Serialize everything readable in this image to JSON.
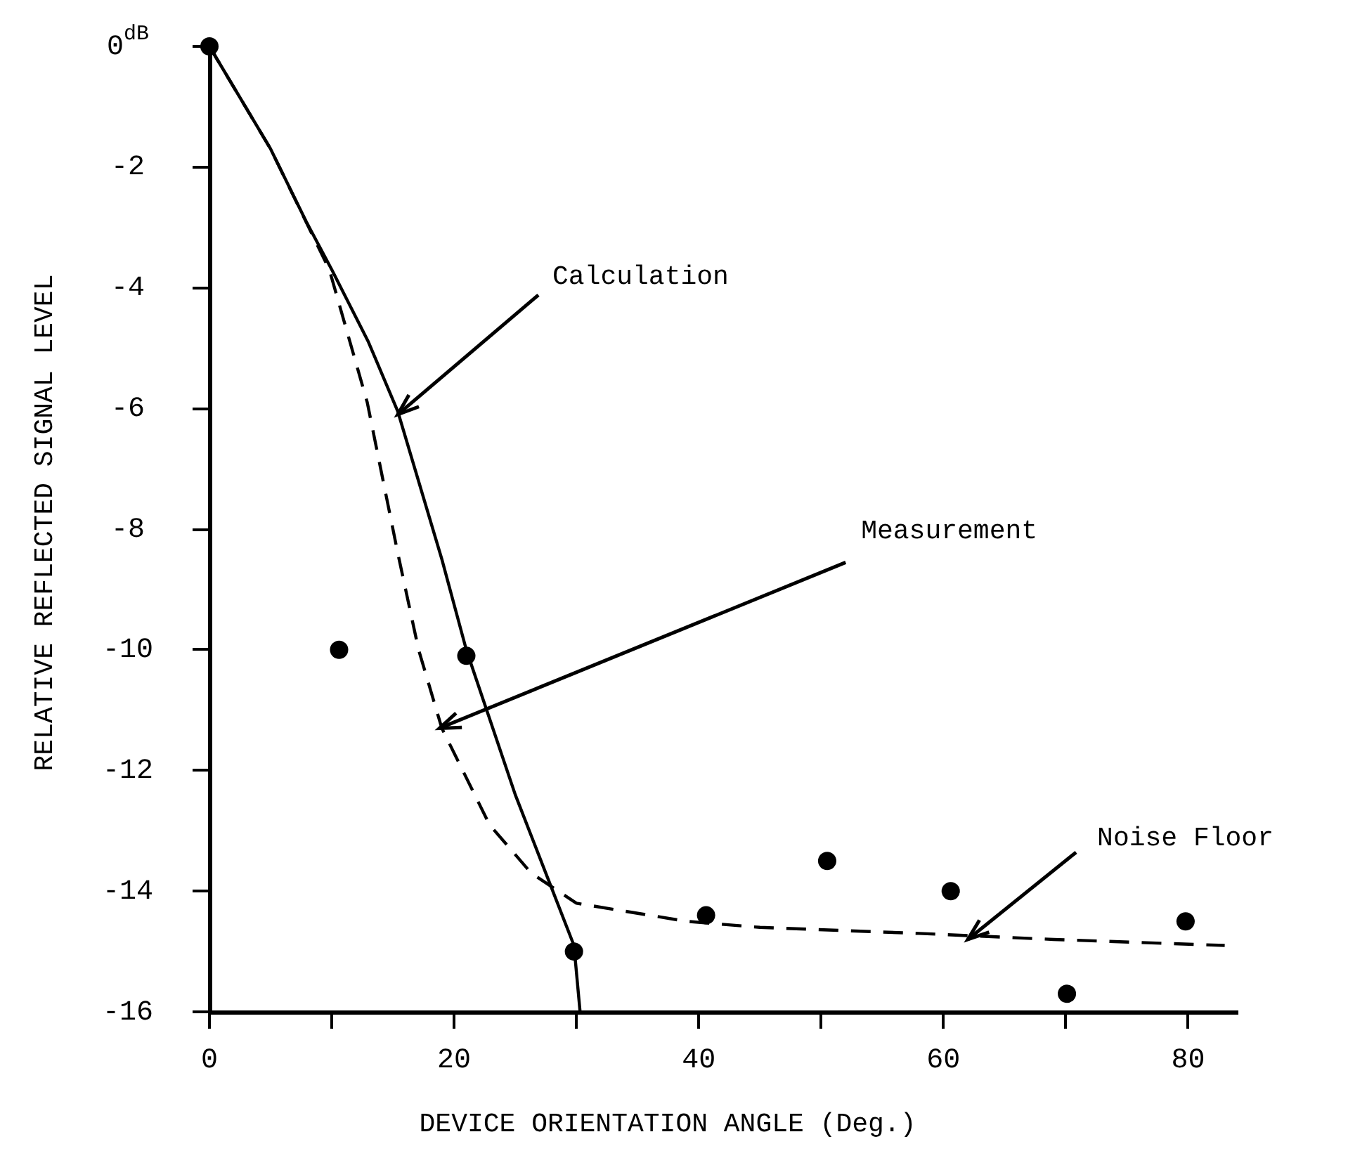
{
  "chart_data": {
    "type": "line",
    "xlabel": "DEVICE ORIENTATION ANGLE (Deg.)",
    "ylabel": "RELATIVE REFLECTED SIGNAL LEVEL",
    "xlim": [
      0,
      84
    ],
    "ylim": [
      -16,
      0
    ],
    "xticks": [
      0,
      {
        "value": 10,
        "label": null
      },
      20,
      {
        "value": 30,
        "label": null
      },
      40,
      {
        "value": 50,
        "label": null
      },
      60,
      {
        "value": 70,
        "label": null
      },
      80
    ],
    "yticks": [
      {
        "value": 0,
        "label": "0$^{dB}$"
      },
      -2,
      -4,
      -6,
      -8,
      -10,
      -12,
      -14,
      -16
    ],
    "grid": false,
    "legend": false,
    "series": [
      {
        "type": "line",
        "line_style": "solid",
        "marker": "none",
        "color": "#000000",
        "x": [
          0,
          5,
          7.9,
          10,
          13,
          15.4,
          19,
          21,
          25,
          29.8,
          30.3
        ],
        "values": [
          0,
          -1.7,
          -2.9,
          -3.7,
          -4.9,
          -6.05,
          -8.5,
          -10,
          -12.4,
          -14.9,
          -16
        ]
      },
      {
        "type": "line",
        "line_style": "dashed",
        "marker": "none",
        "color": "#000000",
        "x": [
          0,
          5,
          9.8,
          12.9,
          15.4,
          17.1,
          19,
          22.9,
          26.3,
          30,
          39,
          45,
          58,
          69,
          83
        ],
        "values": [
          0,
          -1.7,
          -3.7,
          -5.9,
          -8.4,
          -10,
          -11.3,
          -12.9,
          -13.7,
          -14.2,
          -14.5,
          -14.6,
          -14.7,
          -14.8,
          -14.9
        ]
      },
      {
        "type": "scatter",
        "marker": "circle",
        "color": "#000000",
        "x": [
          0,
          10.6,
          21,
          29.8,
          40.6,
          50.5,
          60.6,
          70.1,
          79.8
        ],
        "values": [
          0,
          -10,
          -10.1,
          -15,
          -14.4,
          -13.5,
          -14,
          -15.7,
          -14.5
        ]
      }
    ],
    "annotations": [
      {
        "text": "Calculation",
        "x": 15.4,
        "y": -6.1
      },
      {
        "text": "Measurement",
        "x": 18.8,
        "y": -11.3
      },
      {
        "text": "Noise Floor",
        "x": 62,
        "y": -14.8
      }
    ]
  }
}
